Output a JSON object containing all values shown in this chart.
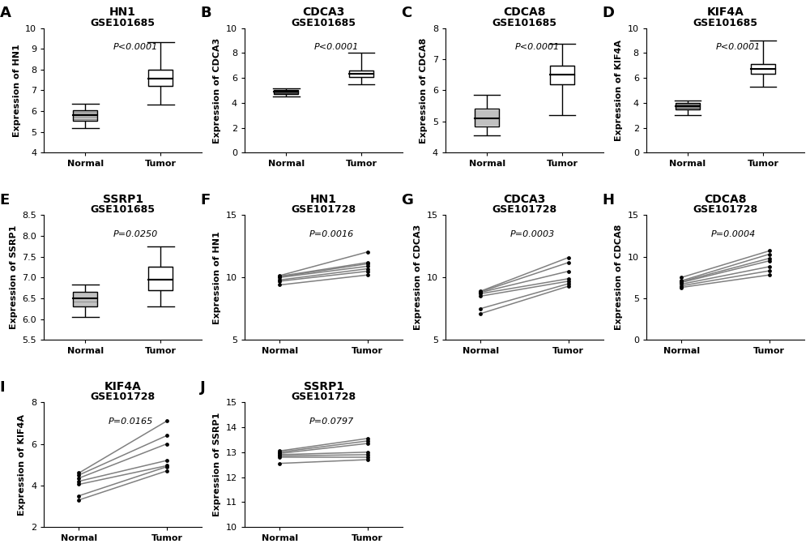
{
  "panels": [
    {
      "label": "A",
      "dataset": "GSE101685",
      "gene": "HN1",
      "type": "boxplot",
      "ylabel": "Expression of HN1",
      "pvalue": "P<0.0001",
      "ylim": [
        4,
        10
      ],
      "yticks": [
        4,
        5,
        6,
        7,
        8,
        9,
        10
      ],
      "normal": {
        "whislo": 5.2,
        "q1": 5.55,
        "med": 5.8,
        "q3": 6.05,
        "whishi": 6.35
      },
      "tumor": {
        "whislo": 6.3,
        "q1": 7.2,
        "med": 7.55,
        "q3": 8.0,
        "whishi": 9.3
      }
    },
    {
      "label": "B",
      "dataset": "GSE101685",
      "gene": "CDCA3",
      "type": "boxplot",
      "ylabel": "Expression of CDCA3",
      "pvalue": "P<0.0001",
      "ylim": [
        0,
        10
      ],
      "yticks": [
        0,
        2,
        4,
        6,
        8,
        10
      ],
      "normal": {
        "whislo": 4.5,
        "q1": 4.72,
        "med": 4.88,
        "q3": 5.0,
        "whishi": 5.15
      },
      "tumor": {
        "whislo": 5.5,
        "q1": 6.05,
        "med": 6.35,
        "q3": 6.6,
        "whishi": 8.0
      }
    },
    {
      "label": "C",
      "dataset": "GSE101685",
      "gene": "CDCA8",
      "type": "boxplot",
      "ylabel": "Expression of CDCA8",
      "pvalue": "P<0.0001",
      "ylim": [
        4,
        8
      ],
      "yticks": [
        4,
        5,
        6,
        7,
        8
      ],
      "normal": {
        "whislo": 4.55,
        "q1": 4.85,
        "med": 5.1,
        "q3": 5.4,
        "whishi": 5.85
      },
      "tumor": {
        "whislo": 5.2,
        "q1": 6.2,
        "med": 6.5,
        "q3": 6.8,
        "whishi": 7.5
      }
    },
    {
      "label": "D",
      "dataset": "GSE101685",
      "gene": "KIF4A",
      "type": "boxplot",
      "ylabel": "Expression of KIF4A",
      "pvalue": "P<0.0001",
      "ylim": [
        0,
        10
      ],
      "yticks": [
        0,
        2,
        4,
        6,
        8,
        10
      ],
      "normal": {
        "whislo": 3.0,
        "q1": 3.45,
        "med": 3.75,
        "q3": 4.0,
        "whishi": 4.2
      },
      "tumor": {
        "whislo": 5.3,
        "q1": 6.35,
        "med": 6.7,
        "q3": 7.1,
        "whishi": 9.0
      }
    },
    {
      "label": "E",
      "dataset": "GSE101685",
      "gene": "SSRP1",
      "type": "boxplot",
      "ylabel": "Expression of SSRP1",
      "pvalue": "P=0.0250",
      "ylim": [
        5.5,
        8.5
      ],
      "yticks": [
        5.5,
        6.0,
        6.5,
        7.0,
        7.5,
        8.0,
        8.5
      ],
      "normal": {
        "whislo": 6.05,
        "q1": 6.3,
        "med": 6.5,
        "q3": 6.65,
        "whishi": 6.82
      },
      "tumor": {
        "whislo": 6.3,
        "q1": 6.7,
        "med": 6.95,
        "q3": 7.25,
        "whishi": 7.75
      }
    },
    {
      "label": "F",
      "dataset": "GSE101728",
      "gene": "HN1",
      "type": "lineplot",
      "ylabel": "Expression of HN1",
      "pvalue": "P=0.0016",
      "ylim": [
        5,
        15
      ],
      "yticks": [
        5,
        10,
        15
      ],
      "normal_vals": [
        9.4,
        9.7,
        9.8,
        10.0,
        10.05,
        10.1,
        10.15
      ],
      "tumor_vals": [
        10.2,
        10.5,
        10.7,
        10.9,
        11.1,
        11.2,
        12.05
      ]
    },
    {
      "label": "G",
      "dataset": "GSE101728",
      "gene": "CDCA3",
      "type": "lineplot",
      "ylabel": "Expression of CDCA3",
      "pvalue": "P=0.0003",
      "ylim": [
        5,
        15
      ],
      "yticks": [
        5,
        10,
        15
      ],
      "normal_vals": [
        7.1,
        7.5,
        8.5,
        8.7,
        8.8,
        8.85,
        8.9
      ],
      "tumor_vals": [
        9.3,
        9.5,
        9.7,
        9.9,
        10.5,
        11.2,
        11.6
      ]
    },
    {
      "label": "H",
      "dataset": "GSE101728",
      "gene": "CDCA8",
      "type": "lineplot",
      "ylabel": "Expression of CDCA8",
      "pvalue": "P=0.0004",
      "ylim": [
        0,
        15
      ],
      "yticks": [
        0,
        5,
        10,
        15
      ],
      "normal_vals": [
        6.3,
        6.5,
        6.7,
        6.9,
        7.0,
        7.1,
        7.5
      ],
      "tumor_vals": [
        7.8,
        8.3,
        8.8,
        9.5,
        9.8,
        10.3,
        10.7
      ]
    },
    {
      "label": "I",
      "dataset": "GSE101728",
      "gene": "KIF4A",
      "type": "lineplot",
      "ylabel": "Expression of KIF4A",
      "pvalue": "P=0.0165",
      "ylim": [
        2,
        8
      ],
      "yticks": [
        2,
        4,
        6,
        8
      ],
      "normal_vals": [
        3.3,
        3.5,
        4.05,
        4.2,
        4.35,
        4.5,
        4.6
      ],
      "tumor_vals": [
        4.7,
        4.9,
        4.95,
        5.2,
        6.0,
        6.4,
        7.1
      ]
    },
    {
      "label": "J",
      "dataset": "GSE101728",
      "gene": "SSRP1",
      "type": "lineplot",
      "ylabel": "Expression of SSRP1",
      "pvalue": "P=0.0797",
      "ylim": [
        10,
        15
      ],
      "yticks": [
        10,
        11,
        12,
        13,
        14,
        15
      ],
      "normal_vals": [
        12.55,
        12.8,
        12.85,
        12.9,
        12.95,
        13.0,
        13.05
      ],
      "tumor_vals": [
        12.7,
        12.8,
        12.9,
        13.0,
        13.35,
        13.45,
        13.55
      ]
    }
  ],
  "bg_color": "white",
  "title_fontsize": 9,
  "gene_fontsize": 10,
  "label_fontsize": 8,
  "tick_fontsize": 8,
  "pval_fontsize": 8,
  "panel_label_fontsize": 13
}
